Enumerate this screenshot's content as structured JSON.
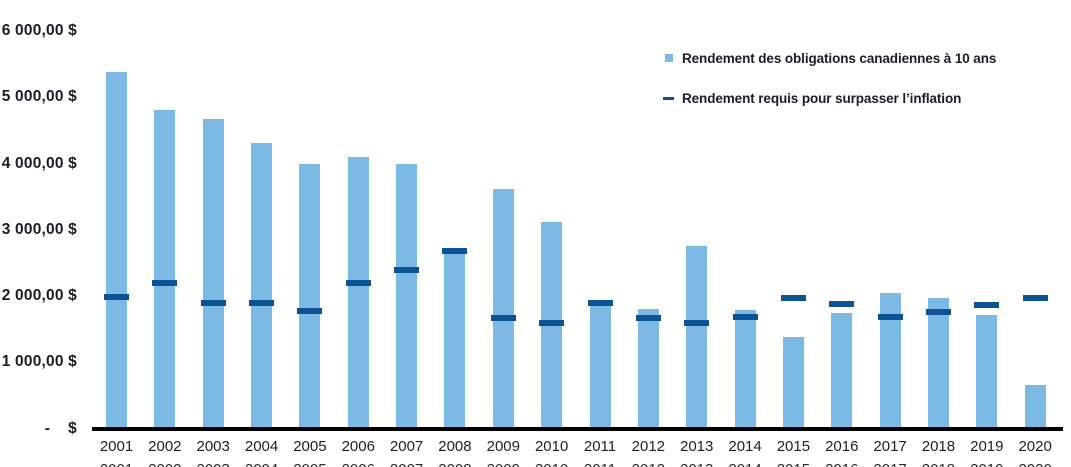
{
  "chart_data": {
    "type": "bar",
    "title": "",
    "xlabel": "",
    "ylabel": "",
    "grid": false,
    "legend_position": "top-right",
    "ylim": [
      0,
      6000
    ],
    "categories": [
      "2001",
      "2002",
      "2003",
      "2004",
      "2005",
      "2006",
      "2007",
      "2008",
      "2009",
      "2010",
      "2011",
      "2012",
      "2013",
      "2014",
      "2015",
      "2016",
      "2017",
      "2018",
      "2019",
      "2020"
    ],
    "series": [
      {
        "name": "Rendement des obligations canadiennes à 10 ans",
        "marker": "square",
        "type": "bar",
        "color": "#7CB9E4",
        "values": [
          5380,
          4810,
          4670,
          4310,
          3990,
          4100,
          3990,
          2650,
          3620,
          3120,
          1910,
          1810,
          2760,
          1790,
          1380,
          1740,
          2040,
          1970,
          1720,
          660
        ]
      },
      {
        "name": "Rendement requis pour surpasser l’inflation",
        "marker": "dash",
        "type": "dash",
        "color": "#0B5394",
        "values": [
          1990,
          2200,
          1890,
          1890,
          1780,
          2200,
          2390,
          2680,
          1670,
          1590,
          1900,
          1670,
          1590,
          1680,
          1970,
          1880,
          1680,
          1760,
          1870,
          1970
        ]
      }
    ],
    "y_ticks": [
      {
        "value": 6000,
        "label": "6 000,00 $"
      },
      {
        "value": 5000,
        "label": "5 000,00 $"
      },
      {
        "value": 4000,
        "label": "4 000,00 $"
      },
      {
        "value": 3000,
        "label": "3 000,00 $"
      },
      {
        "value": 2000,
        "label": "2 000,00 $"
      },
      {
        "value": 1000,
        "label": "1 000,00 $"
      },
      {
        "value": 0,
        "label": "-    $"
      }
    ],
    "axis_line_color": "#000000"
  }
}
